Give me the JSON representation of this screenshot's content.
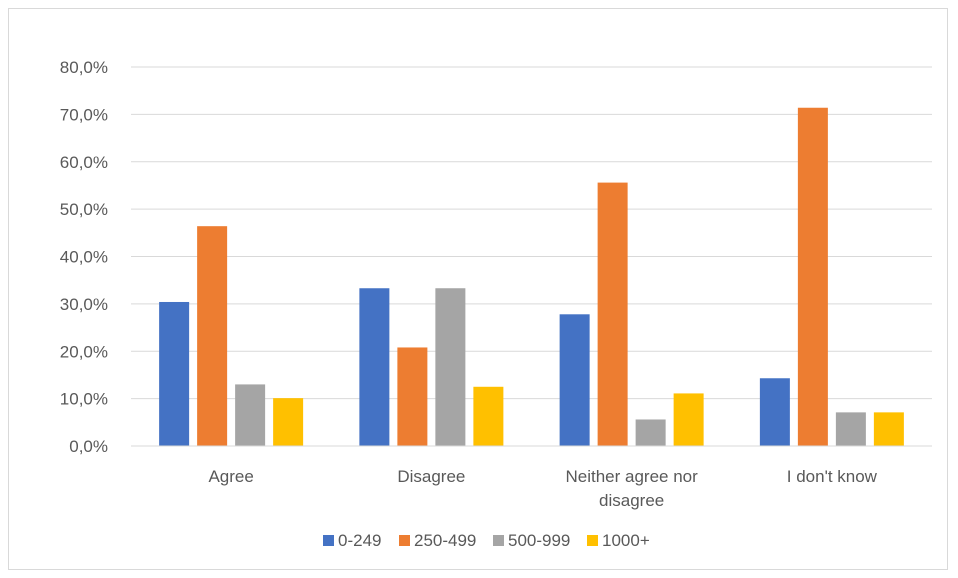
{
  "chart_data": {
    "type": "bar",
    "categories": [
      "Agree",
      "Disagree",
      "Neither agree nor disagree",
      "I don't know"
    ],
    "category_label_lines": [
      [
        "Agree"
      ],
      [
        "Disagree"
      ],
      [
        "Neither agree nor",
        "disagree"
      ],
      [
        "I don't know"
      ]
    ],
    "series": [
      {
        "name": "0-249",
        "color": "#4472c4",
        "values": [
          30.4,
          33.3,
          27.8,
          14.3
        ]
      },
      {
        "name": "250-499",
        "color": "#ed7d31",
        "values": [
          46.4,
          20.8,
          55.6,
          71.4
        ]
      },
      {
        "name": "500-999",
        "color": "#a5a5a5",
        "values": [
          13.0,
          33.3,
          5.6,
          7.1
        ]
      },
      {
        "name": "1000+",
        "color": "#ffc000",
        "values": [
          10.1,
          12.5,
          11.1,
          7.1
        ]
      }
    ],
    "y_ticks": [
      "0,0%",
      "10,0%",
      "20,0%",
      "30,0%",
      "40,0%",
      "50,0%",
      "60,0%",
      "70,0%",
      "80,0%"
    ],
    "ylim": [
      0,
      80
    ],
    "grid": true,
    "legend_position": "bottom",
    "title": "",
    "xlabel": "",
    "ylabel": ""
  }
}
